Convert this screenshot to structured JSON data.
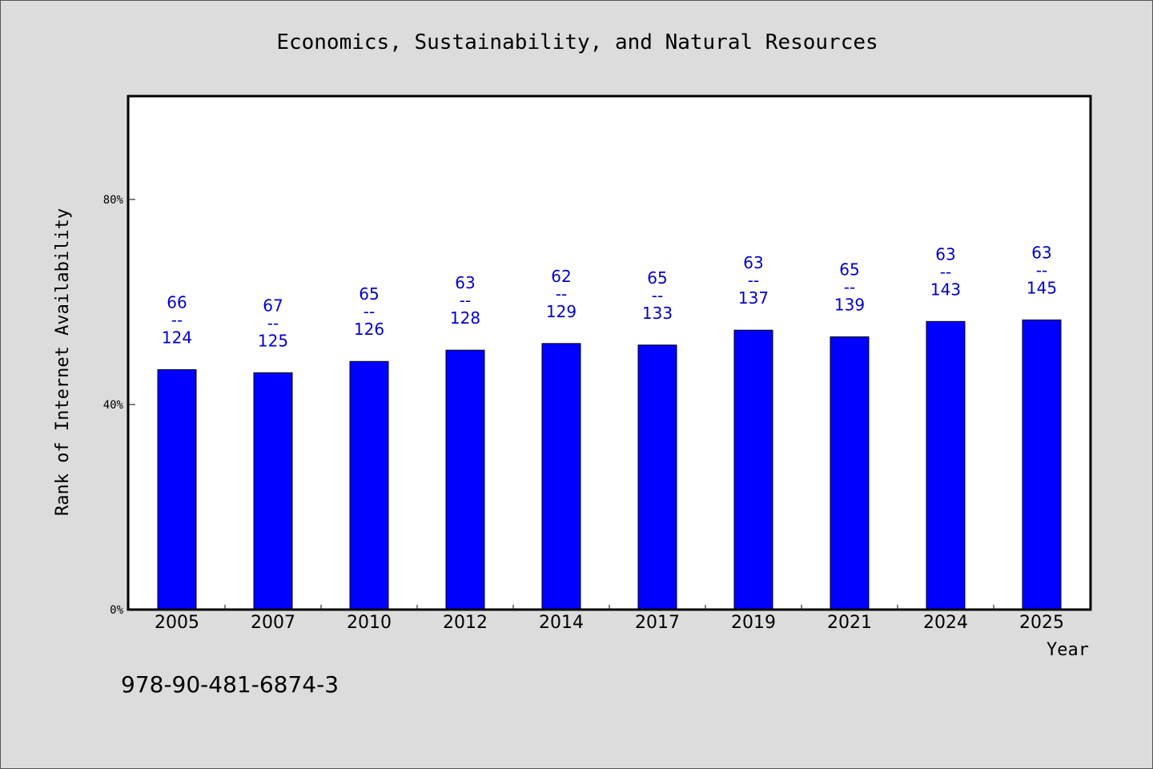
{
  "chart_data": {
    "type": "bar",
    "title": "Economics, Sustainability, and Natural Resources",
    "xlabel": "Year",
    "ylabel": "Rank of Internet Availability",
    "categories": [
      "2005",
      "2007",
      "2010",
      "2012",
      "2014",
      "2017",
      "2019",
      "2021",
      "2024",
      "2025"
    ],
    "values": [
      46.8,
      46.2,
      48.4,
      50.6,
      51.9,
      51.6,
      54.5,
      53.2,
      56.2,
      56.5
    ],
    "data_labels": [
      {
        "top": "66",
        "mid": "--",
        "bottom": "124"
      },
      {
        "top": "67",
        "mid": "--",
        "bottom": "125"
      },
      {
        "top": "65",
        "mid": "--",
        "bottom": "126"
      },
      {
        "top": "63",
        "mid": "--",
        "bottom": "128"
      },
      {
        "top": "62",
        "mid": "--",
        "bottom": "129"
      },
      {
        "top": "65",
        "mid": "--",
        "bottom": "133"
      },
      {
        "top": "63",
        "mid": "--",
        "bottom": "137"
      },
      {
        "top": "65",
        "mid": "--",
        "bottom": "139"
      },
      {
        "top": "63",
        "mid": "--",
        "bottom": "143"
      },
      {
        "top": "63",
        "mid": "--",
        "bottom": "145"
      }
    ],
    "y_ticks": [
      {
        "value": 0,
        "label": "0%"
      },
      {
        "value": 40,
        "label": "40%"
      },
      {
        "value": 80,
        "label": "80%"
      }
    ],
    "ylim": [
      0,
      100
    ],
    "grid": false,
    "legend": "none",
    "colors": {
      "bar": "#0000ff",
      "bar_label": "#0000cc",
      "plot_background": "#ffffff",
      "page_background": "#dcdcdc"
    }
  },
  "footnote": "978-90-481-6874-3"
}
